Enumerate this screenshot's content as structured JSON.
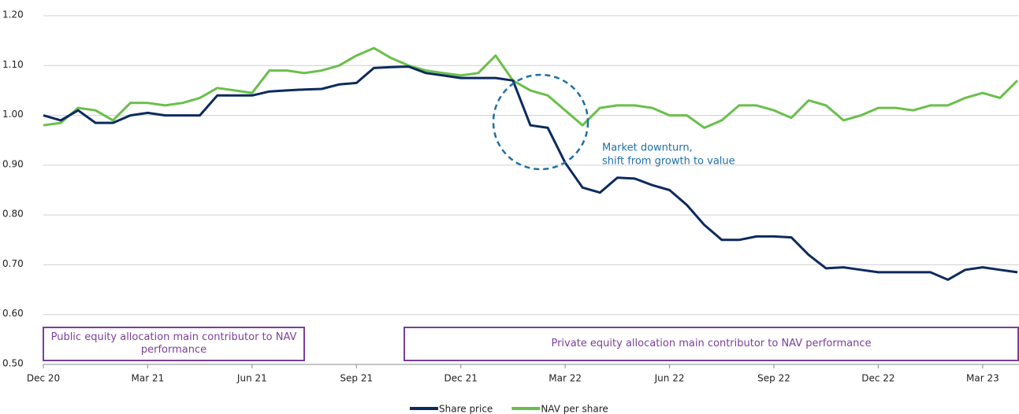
{
  "chart_data": {
    "type": "line",
    "categories": [
      "Dec 20",
      null,
      null,
      null,
      null,
      null,
      "Mar 21",
      null,
      null,
      null,
      null,
      null,
      "Jun 21",
      null,
      null,
      null,
      null,
      null,
      "Sep 21",
      null,
      null,
      null,
      null,
      null,
      "Dec 21",
      null,
      null,
      null,
      null,
      null,
      "Mar 22",
      null,
      null,
      null,
      null,
      null,
      "Jun 22",
      null,
      null,
      null,
      null,
      null,
      "Sep 22",
      null,
      null,
      null,
      null,
      null,
      "Dec 22",
      null,
      null,
      null,
      null,
      null,
      "Mar 23",
      null,
      null
    ],
    "series": [
      {
        "name": "Share price",
        "color": "#0c2a5e",
        "values": [
          1.0,
          0.99,
          1.01,
          0.985,
          0.985,
          1.0,
          1.005,
          1.0,
          1.0,
          1.0,
          1.04,
          1.04,
          1.04,
          1.048,
          1.05,
          1.052,
          1.053,
          1.062,
          1.065,
          1.095,
          1.097,
          1.098,
          1.085,
          1.08,
          1.075,
          1.075,
          1.075,
          1.07,
          0.98,
          0.975,
          0.905,
          0.855,
          0.845,
          0.875,
          0.873,
          0.86,
          0.85,
          0.82,
          0.78,
          0.75,
          0.75,
          0.757,
          0.757,
          0.755,
          0.72,
          0.693,
          0.695,
          0.69,
          0.685,
          0.685,
          0.685,
          0.685,
          0.67,
          0.69,
          0.695,
          0.69,
          0.685
        ]
      },
      {
        "name": "NAV per share",
        "color": "#6abf4b",
        "values": [
          0.98,
          0.985,
          1.015,
          1.01,
          0.99,
          1.025,
          1.025,
          1.02,
          1.025,
          1.035,
          1.055,
          1.05,
          1.045,
          1.09,
          1.09,
          1.085,
          1.09,
          1.1,
          1.12,
          1.135,
          1.115,
          1.1,
          1.09,
          1.085,
          1.08,
          1.085,
          1.12,
          1.07,
          1.05,
          1.04,
          1.01,
          0.98,
          1.015,
          1.02,
          1.02,
          1.015,
          1.0,
          1.0,
          0.975,
          0.99,
          1.02,
          1.02,
          1.01,
          0.995,
          1.03,
          1.02,
          0.99,
          1.0,
          1.015,
          1.015,
          1.01,
          1.02,
          1.02,
          1.035,
          1.045,
          1.035,
          1.07
        ]
      }
    ],
    "ylim": [
      0.5,
      1.2
    ],
    "yticks": [
      {
        "value": 0.5,
        "label": "0.50"
      },
      {
        "value": 0.6,
        "label": "0.60"
      },
      {
        "value": 0.7,
        "label": "0.70"
      },
      {
        "value": 0.8,
        "label": "0.80"
      },
      {
        "value": 0.9,
        "label": "0.90"
      },
      {
        "value": 1.0,
        "label": "1.00"
      },
      {
        "value": 1.1,
        "label": "1.10"
      },
      {
        "value": 1.2,
        "label": "1.20"
      }
    ],
    "grid": true,
    "legend": "bottom",
    "annotations": [
      [
        "Market downturn,",
        "shift from growth to value"
      ]
    ],
    "periods": [
      "Public equity allocation main contributor to NAV performance",
      "Private equity allocation main contributor to NAV performance"
    ]
  }
}
